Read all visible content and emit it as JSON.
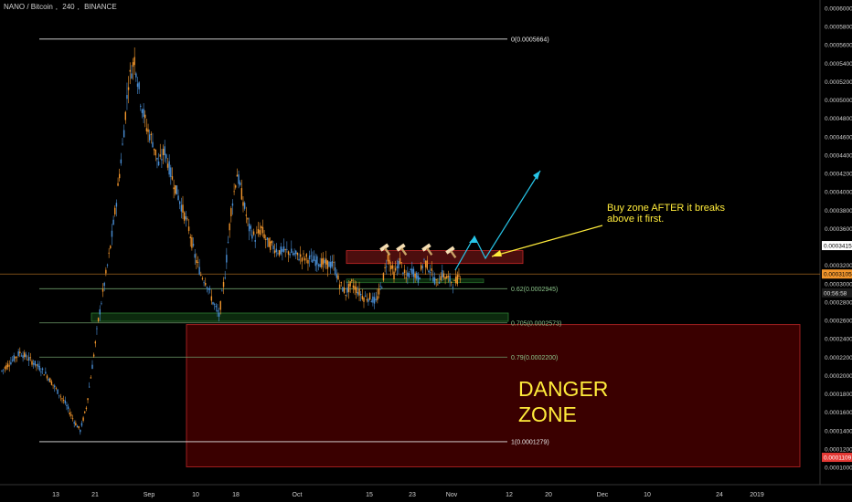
{
  "header": {
    "symbol": "NANO / Bitcoin",
    "interval": "240",
    "exchange": "BINANCE"
  },
  "colors": {
    "background": "#000000",
    "candle_up": "#4a8fd6",
    "candle_down": "#f2962c",
    "fib_level": "#6c9b6a",
    "fib_line_white": "#e6e6e6",
    "danger_fill": "#3a0000",
    "danger_border": "#9e1f1f",
    "annotation_text": "#ffeb3b",
    "arrow_yellow": "#ffeb3b",
    "arrow_cyan": "#27c5e8",
    "price_line": "#f2962c",
    "price_tag_current": "#f2962c",
    "price_tag_red": "#e53935",
    "resistance_box": "#8b1a1a",
    "support_box": "#1b5e20"
  },
  "chart_data": {
    "type": "candlestick",
    "y_axis": {
      "ticks": [
        "0.0006000",
        "0.0005800",
        "0.0005600",
        "0.0005400",
        "0.0005200",
        "0.0005000",
        "0.0004800",
        "0.0004600",
        "0.0004400",
        "0.0004200",
        "0.0004000",
        "0.0003800",
        "0.0003600",
        "0.0003200",
        "0.0003000",
        "0.0002800",
        "0.0002600",
        "0.0002400",
        "0.0002200",
        "0.0002000",
        "0.0001800",
        "0.0001600",
        "0.0001400",
        "0.0001200",
        "0.0001000"
      ],
      "ylim": [
        0.0001,
        0.0006
      ],
      "tags": [
        {
          "label": "0.0003415",
          "value": 0.0003415,
          "style": "white"
        },
        {
          "label": "0.0003105",
          "value": 0.0003105,
          "style": "current"
        },
        {
          "label": "00:56:58",
          "value": 0.00029,
          "style": "timer"
        },
        {
          "label": "0.0001109",
          "value": 0.0001109,
          "style": "red"
        }
      ]
    },
    "x_axis": {
      "ticks": [
        "13",
        "21",
        "Sep",
        "10",
        "18",
        "Oct",
        "15",
        "23",
        "Nov",
        "12",
        "20",
        "Dec",
        "10",
        "24",
        "2019"
      ]
    },
    "fibonacci": [
      {
        "label": "0(0.0005664)",
        "value": 0.0005664,
        "color": "white"
      },
      {
        "label": "0.62(0.0002945)",
        "value": 0.0002945,
        "color": "green"
      },
      {
        "label": "0.705(0.0002573)",
        "value": 0.0002573,
        "color": "green"
      },
      {
        "label": "0.79(0.0002200)",
        "value": 0.00022,
        "color": "green"
      },
      {
        "label": "1(0.0001279)",
        "value": 0.0001279,
        "color": "white"
      }
    ],
    "current_price": 0.0003105,
    "price_path": [
      [
        0,
        0.000205
      ],
      [
        3,
        0.000215
      ],
      [
        6,
        0.000225
      ],
      [
        9,
        0.000218
      ],
      [
        12,
        0.00021
      ],
      [
        15,
        0.0002
      ],
      [
        18,
        0.000185
      ],
      [
        21,
        0.00017
      ],
      [
        24,
        0.00015
      ],
      [
        26,
        0.00014
      ],
      [
        28,
        0.000165
      ],
      [
        30,
        0.00021
      ],
      [
        32,
        0.00026
      ],
      [
        34,
        0.0003
      ],
      [
        36,
        0.00034
      ],
      [
        38,
        0.00039
      ],
      [
        40,
        0.00045
      ],
      [
        42,
        0.00052
      ],
      [
        44,
        0.000545
      ],
      [
        46,
        0.0005
      ],
      [
        48,
        0.00047
      ],
      [
        50,
        0.000455
      ],
      [
        52,
        0.00043
      ],
      [
        54,
        0.000445
      ],
      [
        56,
        0.00042
      ],
      [
        58,
        0.0004
      ],
      [
        60,
        0.00038
      ],
      [
        62,
        0.00036
      ],
      [
        64,
        0.00033
      ],
      [
        66,
        0.00031
      ],
      [
        68,
        0.0003
      ],
      [
        70,
        0.00028
      ],
      [
        72,
        0.000265
      ],
      [
        74,
        0.00031
      ],
      [
        76,
        0.00038
      ],
      [
        78,
        0.00042
      ],
      [
        80,
        0.00039
      ],
      [
        82,
        0.00036
      ],
      [
        84,
        0.00035
      ],
      [
        86,
        0.00036
      ],
      [
        88,
        0.000345
      ],
      [
        90,
        0.00034
      ],
      [
        92,
        0.000335
      ],
      [
        95,
        0.000335
      ],
      [
        98,
        0.00033
      ],
      [
        101,
        0.000328
      ],
      [
        104,
        0.000325
      ],
      [
        107,
        0.000322
      ],
      [
        110,
        0.00032
      ],
      [
        112,
        0.0003
      ],
      [
        114,
        0.00029
      ],
      [
        116,
        0.0003
      ],
      [
        118,
        0.000292
      ],
      [
        120,
        0.000285
      ],
      [
        122,
        0.000285
      ],
      [
        124,
        0.00028
      ],
      [
        126,
        0.0003
      ],
      [
        128,
        0.00033
      ],
      [
        130,
        0.00031
      ],
      [
        132,
        0.000325
      ],
      [
        134,
        0.000305
      ],
      [
        136,
        0.000315
      ],
      [
        138,
        0.000305
      ],
      [
        140,
        0.000325
      ],
      [
        142,
        0.000315
      ],
      [
        144,
        0.0003
      ],
      [
        146,
        0.00031
      ],
      [
        148,
        0.000305
      ],
      [
        150,
        0.0003
      ],
      [
        152,
        0.00031
      ]
    ],
    "danger_zone": {
      "top": 0.0002555,
      "bottom": 0.0001005,
      "label_lines": [
        "DANGER",
        "ZONE"
      ]
    },
    "resistance_box": {
      "top": 0.000336,
      "bottom": 0.000322
    },
    "support_box": {
      "top": 0.000268,
      "bottom": 0.000259
    },
    "annotation": {
      "lines": [
        "Buy zone AFTER it breaks",
        "above it first."
      ]
    }
  }
}
